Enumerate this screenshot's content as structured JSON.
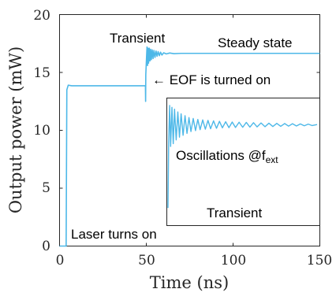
{
  "chart_data": [
    {
      "type": "line",
      "xlabel": "Time (ns)",
      "ylabel": "Output power (mW)",
      "xlim": [
        0,
        150
      ],
      "ylim": [
        0,
        20
      ],
      "xticks": [
        "0",
        "50",
        "100",
        "150"
      ],
      "yticks": [
        "0",
        "5",
        "10",
        "15",
        "20"
      ],
      "grid": false,
      "line_color": "#4db8e8",
      "series": [
        {
          "x": [
            0,
            3.8,
            4.2,
            5,
            7,
            20,
            40,
            49.5,
            49.6,
            49.7,
            49.9,
            50.1,
            50.4,
            50.7,
            51.0,
            51.3,
            51.7,
            52.1,
            52.5,
            52.9,
            53.4,
            53.9,
            54.4,
            55.0,
            55.6,
            56.2,
            56.8,
            57.5,
            58.2,
            59.0,
            60.0,
            61.5,
            63.5,
            66,
            70,
            80,
            100,
            150
          ],
          "y": [
            0,
            0,
            13.5,
            13.9,
            13.85,
            13.85,
            13.85,
            13.85,
            12.5,
            14.8,
            15.5,
            16.2,
            17.2,
            15.6,
            17.1,
            15.8,
            17.1,
            16.0,
            17.0,
            16.1,
            16.95,
            16.2,
            16.9,
            16.3,
            16.85,
            16.4,
            16.8,
            16.45,
            16.75,
            16.5,
            16.7,
            16.6,
            16.68,
            16.62,
            16.65,
            16.65,
            16.65,
            16.65
          ]
        }
      ],
      "annotations": {
        "transient_top": "Transient",
        "steady_state": "Steady state",
        "eof_arrow": "← EOF is turned on",
        "laser_on": "Laser turns on"
      }
    },
    {
      "type": "line",
      "title": "",
      "line_color": "#4db8e8",
      "series": [
        {
          "x": [
            0,
            0.2,
            0.5,
            0.8,
            1.2,
            1.6,
            2.0,
            2.5,
            3.0,
            3.5,
            4.0,
            4.6,
            5.2,
            5.8,
            6.4,
            7.0,
            7.7,
            8.4,
            9.1,
            9.8,
            10.6,
            11.4,
            12.2,
            13.0,
            13.9,
            14.8,
            15.7,
            16.6,
            17.6,
            18.6,
            19.6,
            20.6,
            21.7,
            22.8,
            23.9,
            25.0,
            26.1,
            27.2,
            28.4,
            29.6,
            30.8,
            32.0,
            33.2,
            34.4,
            35.6,
            36.8,
            38.0,
            39.2,
            40.4,
            41.6,
            42.8,
            44.0,
            45.5
          ],
          "y": [
            1.0,
            8.0,
            12.0,
            7.6,
            11.8,
            7.9,
            11.6,
            8.3,
            11.3,
            8.6,
            11.1,
            8.8,
            10.9,
            9.0,
            10.7,
            9.2,
            10.6,
            9.3,
            10.5,
            9.4,
            10.45,
            9.45,
            10.4,
            9.5,
            10.35,
            9.55,
            10.3,
            9.6,
            10.25,
            9.62,
            10.22,
            9.64,
            10.2,
            9.66,
            10.18,
            9.68,
            10.15,
            9.7,
            10.12,
            9.72,
            10.1,
            9.74,
            10.08,
            9.76,
            10.06,
            9.78,
            10.04,
            9.8,
            10.02,
            9.82,
            10.0,
            9.84,
            9.95
          ]
        }
      ],
      "annotations": {
        "oscillations": "Oscillations @f",
        "oscillations_sub": "ext",
        "transient_inset": "Transient"
      }
    }
  ]
}
